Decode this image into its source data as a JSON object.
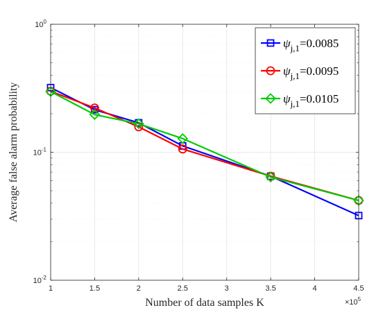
{
  "chart_data": {
    "type": "line",
    "x": [
      1,
      1.5,
      2,
      2.5,
      3.5,
      4.5
    ],
    "x_multiplier_label": "×10",
    "x_multiplier_exponent": "5",
    "xlabel": "Number of data samples K",
    "ylabel": "Average false alarm probability",
    "xlim": [
      1,
      4.5
    ],
    "ylim": [
      0.01,
      1
    ],
    "yscale": "log",
    "xticks": [
      "1",
      "1.5",
      "2",
      "2.5",
      "3",
      "3.5",
      "4",
      "4.5"
    ],
    "xtick_values": [
      1,
      1.5,
      2,
      2.5,
      3,
      3.5,
      4,
      4.5
    ],
    "yticks": [
      {
        "base": "10",
        "exp": "0",
        "value": 1
      },
      {
        "base": "10",
        "exp": "-1",
        "value": 0.1
      },
      {
        "base": "10",
        "exp": "-2",
        "value": 0.01
      }
    ],
    "grid": true,
    "legend_position": "top-right",
    "series": [
      {
        "name_symbol": "ψ",
        "name_sub": "j,1",
        "name_value": "=0.0085",
        "color": "#0000FF",
        "marker": "square",
        "values": [
          0.32,
          0.215,
          0.17,
          0.112,
          0.065,
          0.032
        ]
      },
      {
        "name_symbol": "ψ",
        "name_sub": "j,1",
        "name_value": "=0.0095",
        "color": "#FF0000",
        "marker": "circle",
        "values": [
          0.3,
          0.222,
          0.158,
          0.106,
          0.065,
          0.042
        ]
      },
      {
        "name_symbol": "ψ",
        "name_sub": "j,1",
        "name_value": "=0.0105",
        "color": "#00CC00",
        "marker": "diamond",
        "values": [
          0.298,
          0.197,
          0.167,
          0.128,
          0.064,
          0.042
        ]
      }
    ]
  }
}
